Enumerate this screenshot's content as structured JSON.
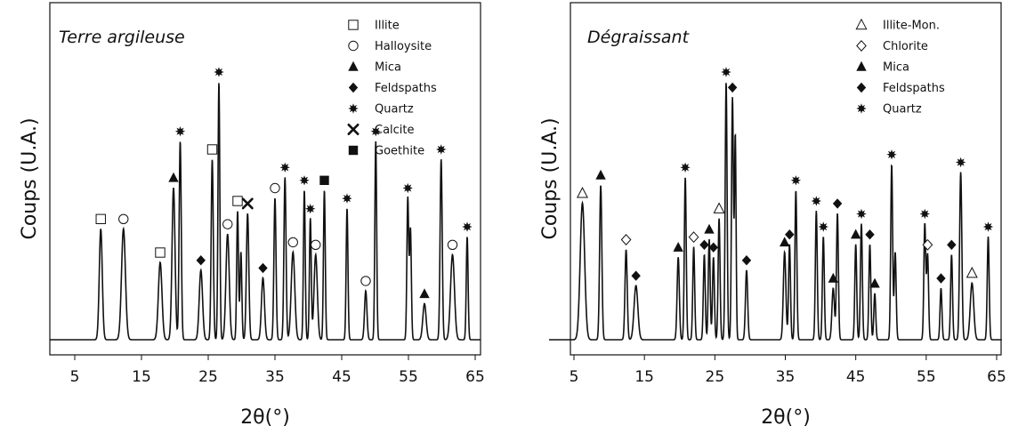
{
  "chart_data": [
    {
      "type": "line",
      "title": "Terre argileuse",
      "xlabel": "2θ(°)",
      "ylabel": "Coups (U.A.)",
      "xlim": [
        5,
        65
      ],
      "xticks": [
        5,
        15,
        25,
        35,
        45,
        55,
        65
      ],
      "legend": [
        {
          "label": "Illite",
          "marker": "square-open"
        },
        {
          "label": "Halloysite",
          "marker": "circle-open"
        },
        {
          "label": "Mica",
          "marker": "triangle-filled"
        },
        {
          "label": "Feldspaths",
          "marker": "diamond-filled"
        },
        {
          "label": "Quartz",
          "marker": "star-filled"
        },
        {
          "label": "Calcite",
          "marker": "cross"
        },
        {
          "label": "Goethite",
          "marker": "square-filled"
        }
      ],
      "legend_position": "top-right",
      "peaks": [
        {
          "x": 8.9,
          "y": 0.43,
          "w": 0.5,
          "marker": "square-open"
        },
        {
          "x": 12.3,
          "y": 0.43,
          "w": 0.65,
          "marker": "circle-open"
        },
        {
          "x": 17.8,
          "y": 0.3,
          "w": 0.6,
          "marker": "square-open"
        },
        {
          "x": 19.8,
          "y": 0.59,
          "w": 0.5,
          "marker": "triangle-filled"
        },
        {
          "x": 20.8,
          "y": 0.77,
          "w": 0.35,
          "marker": "star-filled"
        },
        {
          "x": 23.9,
          "y": 0.27,
          "w": 0.55,
          "marker": "diamond-filled"
        },
        {
          "x": 25.6,
          "y": 0.7,
          "w": 0.35,
          "marker": "square-open"
        },
        {
          "x": 26.6,
          "y": 1.0,
          "w": 0.3,
          "marker": "star-filled"
        },
        {
          "x": 27.9,
          "y": 0.41,
          "w": 0.55,
          "marker": "circle-open"
        },
        {
          "x": 29.4,
          "y": 0.5,
          "w": 0.3,
          "marker": "square-open"
        },
        {
          "x": 29.9,
          "y": 0.34,
          "w": 0.3,
          "marker": ""
        },
        {
          "x": 30.9,
          "y": 0.49,
          "w": 0.4,
          "marker": "cross"
        },
        {
          "x": 33.2,
          "y": 0.24,
          "w": 0.5,
          "marker": "diamond-filled"
        },
        {
          "x": 35.0,
          "y": 0.55,
          "w": 0.35,
          "marker": "circle-open"
        },
        {
          "x": 36.5,
          "y": 0.63,
          "w": 0.35,
          "marker": "star-filled"
        },
        {
          "x": 37.7,
          "y": 0.34,
          "w": 0.6,
          "marker": "circle-open"
        },
        {
          "x": 39.4,
          "y": 0.58,
          "w": 0.3,
          "marker": "star-filled"
        },
        {
          "x": 40.3,
          "y": 0.47,
          "w": 0.3,
          "marker": "star-filled"
        },
        {
          "x": 41.1,
          "y": 0.33,
          "w": 0.55,
          "marker": "circle-open"
        },
        {
          "x": 42.4,
          "y": 0.58,
          "w": 0.3,
          "marker": "square-filled"
        },
        {
          "x": 45.8,
          "y": 0.51,
          "w": 0.3,
          "marker": "star-filled"
        },
        {
          "x": 48.6,
          "y": 0.19,
          "w": 0.4,
          "marker": "circle-open"
        },
        {
          "x": 50.1,
          "y": 0.77,
          "w": 0.3,
          "marker": "star-filled"
        },
        {
          "x": 54.9,
          "y": 0.55,
          "w": 0.3,
          "marker": "star-filled"
        },
        {
          "x": 55.3,
          "y": 0.43,
          "w": 0.3,
          "marker": ""
        },
        {
          "x": 57.4,
          "y": 0.14,
          "w": 0.55,
          "marker": "triangle-filled"
        },
        {
          "x": 59.9,
          "y": 0.7,
          "w": 0.35,
          "marker": "star-filled"
        },
        {
          "x": 61.6,
          "y": 0.33,
          "w": 0.65,
          "marker": "circle-open"
        },
        {
          "x": 63.8,
          "y": 0.4,
          "w": 0.3,
          "marker": "star-filled"
        }
      ]
    },
    {
      "type": "line",
      "title": "Dégraissant",
      "xlabel": "2θ(°)",
      "ylabel": "Coups (U.A.)",
      "xlim": [
        5,
        65
      ],
      "xticks": [
        5,
        15,
        25,
        35,
        45,
        55,
        65
      ],
      "legend": [
        {
          "label": "Illite-Mon.",
          "marker": "triangle-open"
        },
        {
          "label": "Chlorite",
          "marker": "diamond-open"
        },
        {
          "label": "Mica",
          "marker": "triangle-filled"
        },
        {
          "label": "Feldspaths",
          "marker": "diamond-filled"
        },
        {
          "label": "Quartz",
          "marker": "star-filled"
        }
      ],
      "legend_position": "top-right",
      "peaks": [
        {
          "x": 6.2,
          "y": 0.53,
          "w": 0.7,
          "marker": "triangle-open"
        },
        {
          "x": 8.8,
          "y": 0.6,
          "w": 0.35,
          "marker": "triangle-filled"
        },
        {
          "x": 12.4,
          "y": 0.35,
          "w": 0.35,
          "marker": "diamond-open"
        },
        {
          "x": 13.8,
          "y": 0.21,
          "w": 0.6,
          "marker": "diamond-filled"
        },
        {
          "x": 19.8,
          "y": 0.32,
          "w": 0.35,
          "marker": "triangle-filled"
        },
        {
          "x": 20.8,
          "y": 0.63,
          "w": 0.3,
          "marker": "star-filled"
        },
        {
          "x": 22.0,
          "y": 0.36,
          "w": 0.3,
          "marker": "diamond-open"
        },
        {
          "x": 23.5,
          "y": 0.33,
          "w": 0.3,
          "marker": "diamond-filled"
        },
        {
          "x": 24.2,
          "y": 0.39,
          "w": 0.3,
          "marker": "triangle-filled"
        },
        {
          "x": 24.8,
          "y": 0.32,
          "w": 0.3,
          "marker": "diamond-filled"
        },
        {
          "x": 25.6,
          "y": 0.47,
          "w": 0.3,
          "marker": "triangle-open"
        },
        {
          "x": 26.6,
          "y": 1.0,
          "w": 0.3,
          "marker": "star-filled"
        },
        {
          "x": 27.5,
          "y": 0.94,
          "w": 0.3,
          "marker": "diamond-filled"
        },
        {
          "x": 27.9,
          "y": 0.79,
          "w": 0.25,
          "marker": ""
        },
        {
          "x": 29.5,
          "y": 0.27,
          "w": 0.35,
          "marker": "diamond-filled"
        },
        {
          "x": 34.9,
          "y": 0.34,
          "w": 0.4,
          "marker": "triangle-filled"
        },
        {
          "x": 35.6,
          "y": 0.37,
          "w": 0.3,
          "marker": "diamond-filled"
        },
        {
          "x": 36.5,
          "y": 0.58,
          "w": 0.3,
          "marker": "star-filled"
        },
        {
          "x": 39.4,
          "y": 0.5,
          "w": 0.3,
          "marker": "star-filled"
        },
        {
          "x": 40.4,
          "y": 0.4,
          "w": 0.3,
          "marker": "star-filled"
        },
        {
          "x": 41.8,
          "y": 0.2,
          "w": 0.4,
          "marker": "triangle-filled"
        },
        {
          "x": 42.4,
          "y": 0.49,
          "w": 0.3,
          "marker": "diamond-filled"
        },
        {
          "x": 45.0,
          "y": 0.37,
          "w": 0.3,
          "marker": "triangle-filled"
        },
        {
          "x": 45.8,
          "y": 0.45,
          "w": 0.3,
          "marker": "star-filled"
        },
        {
          "x": 47.0,
          "y": 0.37,
          "w": 0.3,
          "marker": "diamond-filled"
        },
        {
          "x": 47.7,
          "y": 0.18,
          "w": 0.3,
          "marker": "triangle-filled"
        },
        {
          "x": 50.1,
          "y": 0.68,
          "w": 0.3,
          "marker": "star-filled"
        },
        {
          "x": 50.6,
          "y": 0.34,
          "w": 0.3,
          "marker": ""
        },
        {
          "x": 54.8,
          "y": 0.45,
          "w": 0.3,
          "marker": "star-filled"
        },
        {
          "x": 55.2,
          "y": 0.33,
          "w": 0.3,
          "marker": "diamond-open"
        },
        {
          "x": 57.1,
          "y": 0.2,
          "w": 0.3,
          "marker": "diamond-filled"
        },
        {
          "x": 58.6,
          "y": 0.33,
          "w": 0.3,
          "marker": "diamond-filled"
        },
        {
          "x": 59.9,
          "y": 0.65,
          "w": 0.35,
          "marker": "star-filled"
        },
        {
          "x": 61.5,
          "y": 0.22,
          "w": 0.55,
          "marker": "triangle-open"
        },
        {
          "x": 63.8,
          "y": 0.4,
          "w": 0.3,
          "marker": "star-filled"
        }
      ]
    }
  ],
  "colors": {
    "line": "#111111",
    "axis": "#111111",
    "background": "#ffffff"
  }
}
